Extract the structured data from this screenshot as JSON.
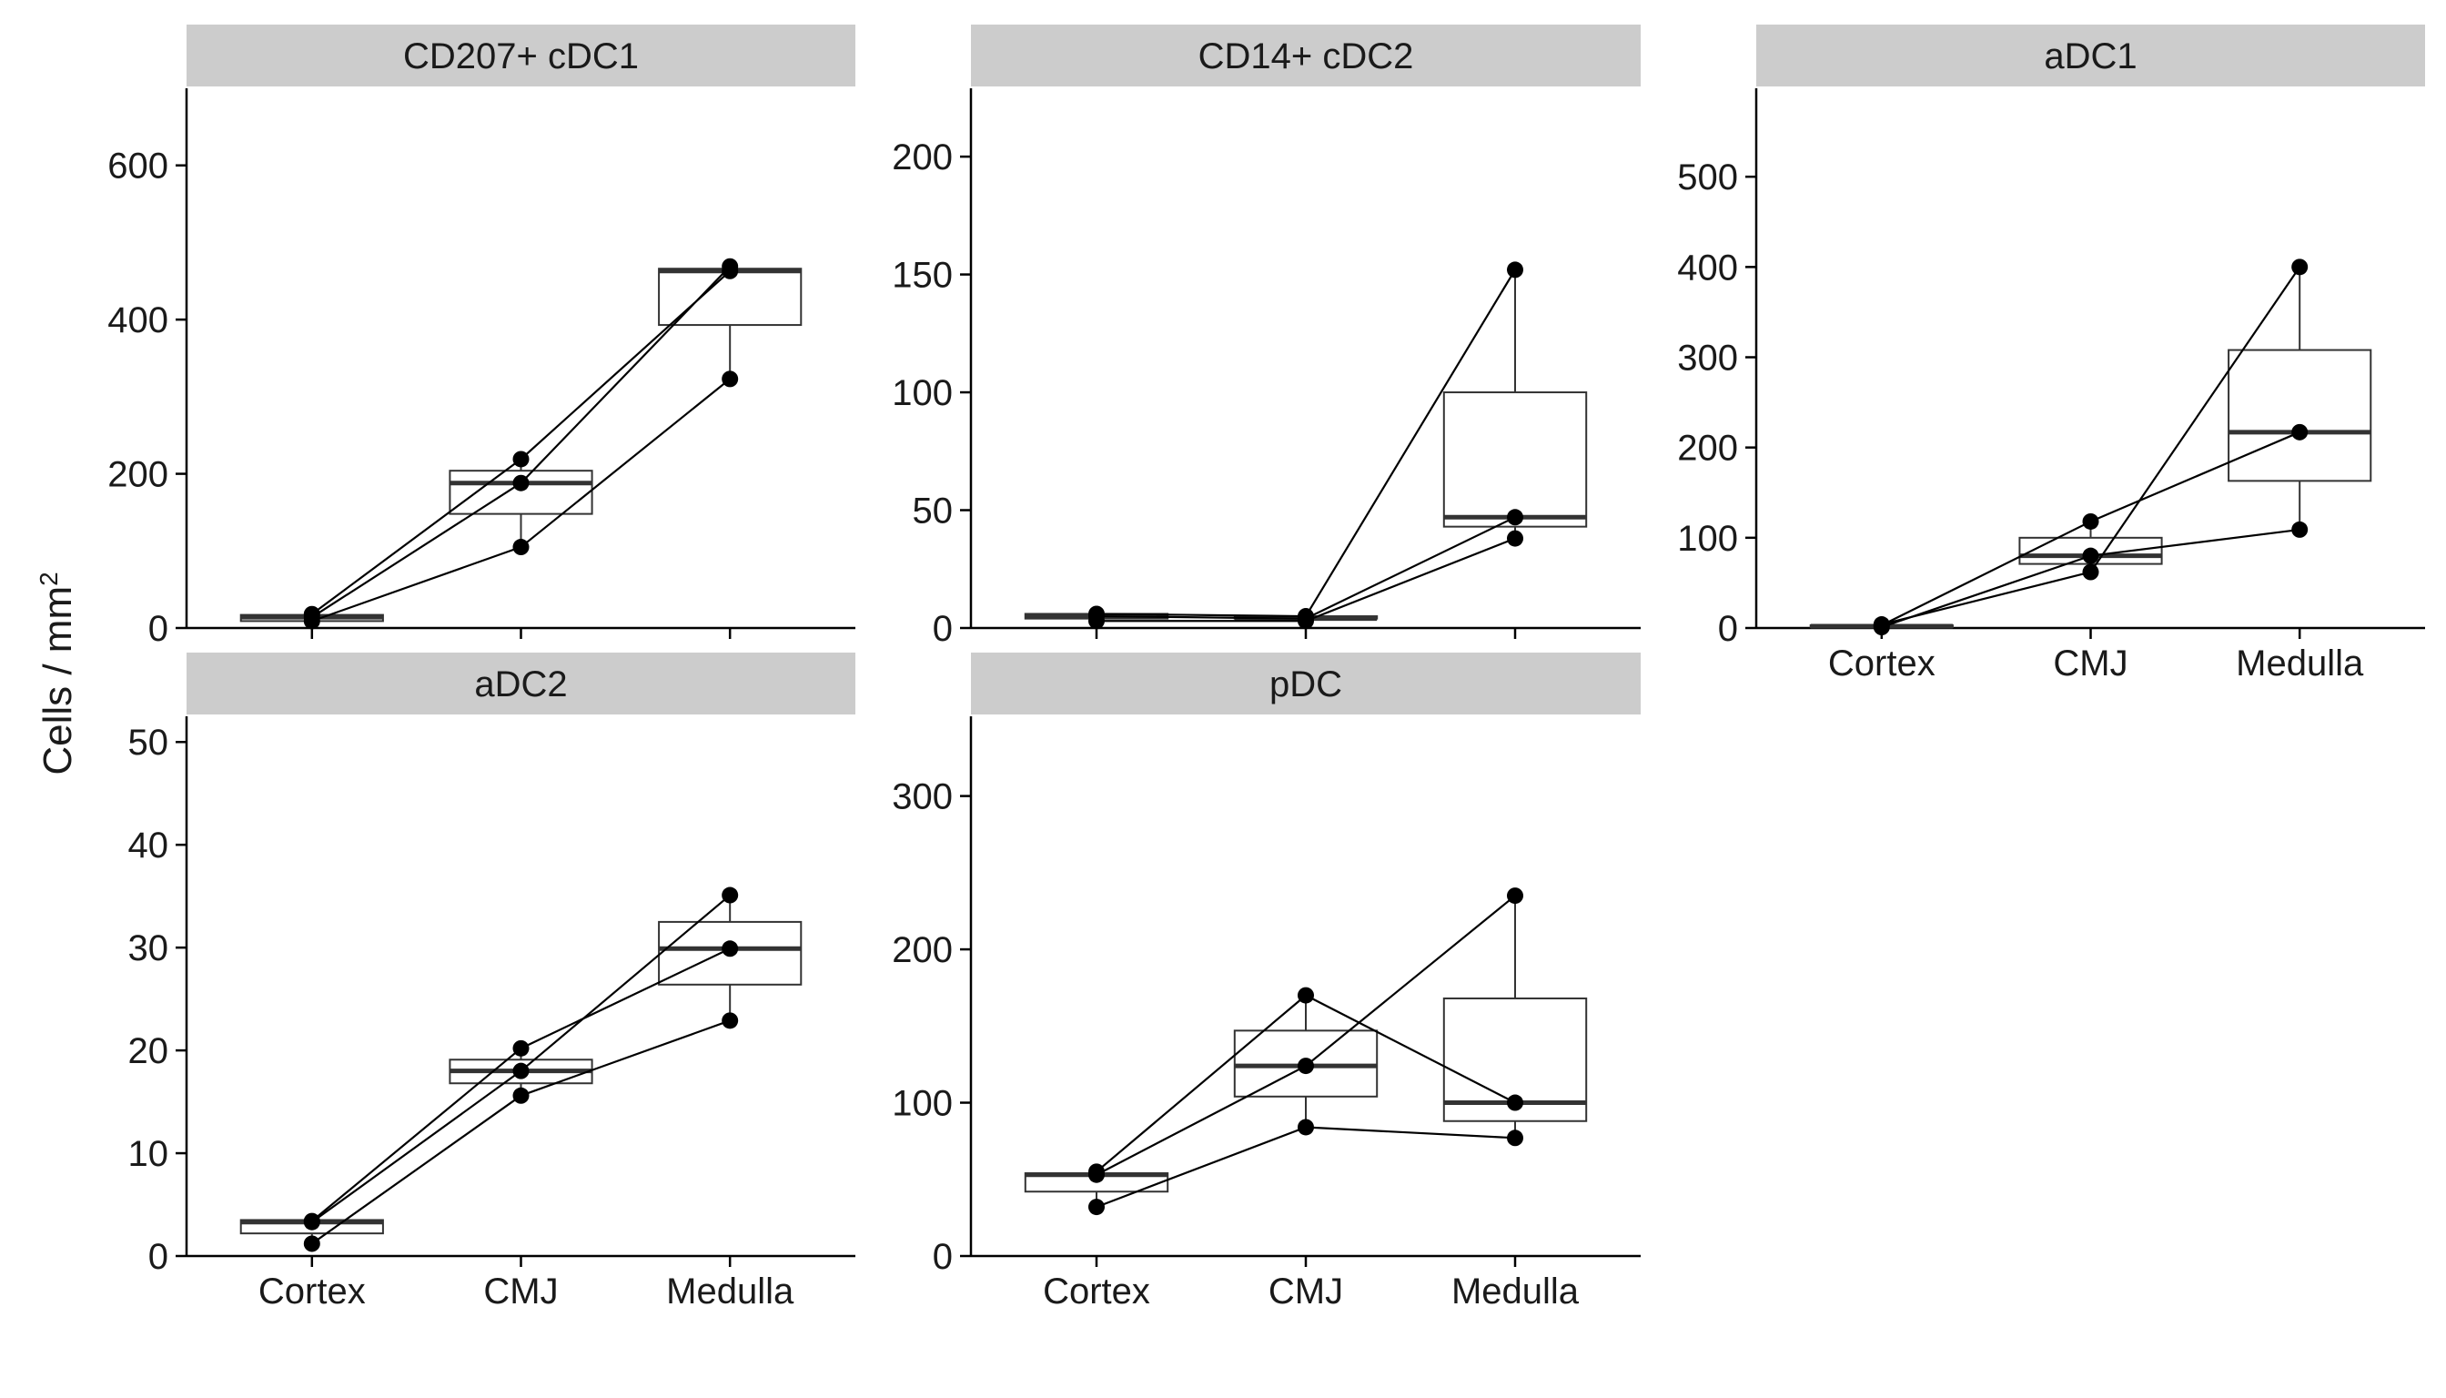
{
  "y_axis_label": "Cells / mm",
  "y_axis_label_superscript": "2",
  "chart_data": [
    {
      "type": "box",
      "title": "CD207+  cDC1",
      "categories": [
        "Cortex",
        "CMJ",
        "Medulla"
      ],
      "ylim": [
        0,
        700
      ],
      "yticks": [
        0,
        200,
        400,
        600
      ],
      "show_x_tick_labels": false,
      "box_stats": [
        {
          "q1": 9,
          "median": 14,
          "q3": 17,
          "whisker_low": 9,
          "whisker_high": 19
        },
        {
          "q1": 148,
          "median": 188,
          "q3": 204,
          "whisker_low": 105,
          "whisker_high": 219
        },
        {
          "q1": 393,
          "median": 463,
          "q3": 466,
          "whisker_low": 323,
          "whisker_high": 469
        }
      ],
      "series": [
        {
          "values": [
            18,
            219,
            463
          ]
        },
        {
          "values": [
            14,
            188,
            469
          ]
        },
        {
          "values": [
            9,
            105,
            323
          ]
        }
      ]
    },
    {
      "type": "box",
      "title": "CD14+  cDC2",
      "categories": [
        "Cortex",
        "CMJ",
        "Medulla"
      ],
      "ylim": [
        0,
        229
      ],
      "yticks": [
        0,
        50,
        100,
        150,
        200
      ],
      "show_x_tick_labels": false,
      "box_stats": [
        {
          "q1": 4,
          "median": 5,
          "q3": 6,
          "whisker_low": 3,
          "whisker_high": 6
        },
        {
          "q1": 4,
          "median": 4,
          "q3": 5,
          "whisker_low": 3,
          "whisker_high": 5
        },
        {
          "q1": 43,
          "median": 47,
          "q3": 100,
          "whisker_low": 38,
          "whisker_high": 152
        }
      ],
      "series": [
        {
          "values": [
            6,
            5,
            152
          ]
        },
        {
          "values": [
            5,
            4,
            47
          ]
        },
        {
          "values": [
            3,
            3,
            38
          ]
        }
      ]
    },
    {
      "type": "box",
      "title": "aDC1",
      "categories": [
        "Cortex",
        "CMJ",
        "Medulla"
      ],
      "ylim": [
        0,
        598
      ],
      "yticks": [
        0,
        100,
        200,
        300,
        400,
        500
      ],
      "show_x_tick_labels": true,
      "box_stats": [
        {
          "q1": 1,
          "median": 2,
          "q3": 3,
          "whisker_low": 1,
          "whisker_high": 4
        },
        {
          "q1": 71,
          "median": 80,
          "q3": 100,
          "whisker_low": 62,
          "whisker_high": 118
        },
        {
          "q1": 163,
          "median": 217,
          "q3": 308,
          "whisker_low": 109,
          "whisker_high": 400
        }
      ],
      "series": [
        {
          "values": [
            4,
            62,
            400
          ]
        },
        {
          "values": [
            3,
            118,
            217
          ]
        },
        {
          "values": [
            1,
            80,
            109
          ]
        }
      ]
    },
    {
      "type": "box",
      "title": "aDC2",
      "categories": [
        "Cortex",
        "CMJ",
        "Medulla"
      ],
      "ylim": [
        0,
        52.5
      ],
      "yticks": [
        0,
        10,
        20,
        30,
        40,
        50
      ],
      "show_x_tick_labels": true,
      "box_stats": [
        {
          "q1": 2.2,
          "median": 3.3,
          "q3": 3.5,
          "whisker_low": 1.2,
          "whisker_high": 3.5
        },
        {
          "q1": 16.8,
          "median": 18,
          "q3": 19.1,
          "whisker_low": 15.6,
          "whisker_high": 20.2
        },
        {
          "q1": 26.4,
          "median": 29.9,
          "q3": 32.5,
          "whisker_low": 22.9,
          "whisker_high": 35.1
        }
      ],
      "series": [
        {
          "values": [
            3.4,
            20.2,
            29.9
          ]
        },
        {
          "values": [
            3.3,
            18,
            35.1
          ]
        },
        {
          "values": [
            1.2,
            15.6,
            22.9
          ]
        }
      ]
    },
    {
      "type": "box",
      "title": "pDC",
      "categories": [
        "Cortex",
        "CMJ",
        "Medulla"
      ],
      "ylim": [
        0,
        352
      ],
      "yticks": [
        0,
        100,
        200,
        300
      ],
      "show_x_tick_labels": true,
      "box_stats": [
        {
          "q1": 42,
          "median": 53,
          "q3": 54,
          "whisker_low": 32,
          "whisker_high": 55
        },
        {
          "q1": 104,
          "median": 124,
          "q3": 147,
          "whisker_low": 84,
          "whisker_high": 170
        },
        {
          "q1": 88,
          "median": 100,
          "q3": 168,
          "whisker_low": 77,
          "whisker_high": 235
        }
      ],
      "series": [
        {
          "values": [
            55,
            170,
            100
          ]
        },
        {
          "values": [
            53,
            124,
            235
          ]
        },
        {
          "values": [
            32,
            84,
            77
          ]
        }
      ]
    }
  ]
}
